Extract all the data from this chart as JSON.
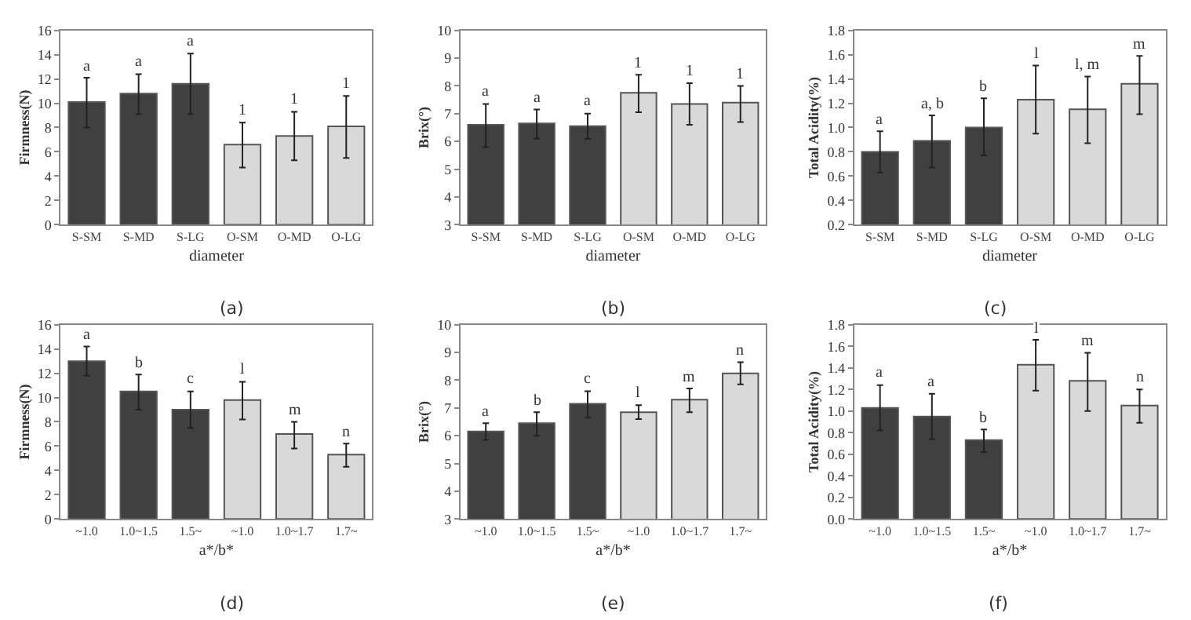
{
  "chart_data": [
    {
      "type": "bar",
      "categories": [
        "S-SM",
        "S-MD",
        "S-LG",
        "O-SM",
        "O-MD",
        "O-LG"
      ],
      "values": [
        10.1,
        10.8,
        11.6,
        6.6,
        7.3,
        8.1
      ],
      "colors": [
        "#404040",
        "#404040",
        "#404040",
        "#d9d9d9",
        "#d9d9d9",
        "#d9d9d9"
      ],
      "errors": [
        [
          8.0,
          12.1
        ],
        [
          9.1,
          12.4
        ],
        [
          9.1,
          14.1
        ],
        [
          4.7,
          8.4
        ],
        [
          5.3,
          9.3
        ],
        [
          5.5,
          10.6
        ]
      ],
      "ylabel": "Firmness(N)",
      "xlabel": "diameter",
      "ylim": [
        0,
        16
      ],
      "yticks": [
        0,
        2,
        4,
        6,
        8,
        10,
        12,
        14,
        16
      ],
      "annotations": [
        "a",
        "a",
        "a",
        "1",
        "1",
        "1",
        "(a)"
      ]
    },
    {
      "type": "bar",
      "categories": [
        "S-SM",
        "S-MD",
        "S-LG",
        "O-SM",
        "O-MD",
        "O-LG"
      ],
      "values": [
        6.6,
        6.65,
        6.55,
        7.75,
        7.35,
        7.4
      ],
      "colors": [
        "#404040",
        "#404040",
        "#404040",
        "#d9d9d9",
        "#d9d9d9",
        "#d9d9d9"
      ],
      "errors": [
        [
          5.8,
          7.35
        ],
        [
          6.1,
          7.15
        ],
        [
          6.1,
          7.0
        ],
        [
          7.05,
          8.4
        ],
        [
          6.6,
          8.1
        ],
        [
          6.7,
          8.0
        ]
      ],
      "ylabel": "Brix(°)",
      "xlabel": "diameter",
      "ylim": [
        3,
        10
      ],
      "yticks": [
        3,
        4,
        5,
        6,
        7,
        8,
        9,
        10
      ],
      "annotations": [
        "a",
        "a",
        "a",
        "1",
        "1",
        "1",
        "(b)"
      ]
    },
    {
      "type": "bar",
      "categories": [
        "S-SM",
        "S-MD",
        "S-LG",
        "O-SM",
        "O-MD",
        "O-LG"
      ],
      "values": [
        0.8,
        0.89,
        1.0,
        1.23,
        1.15,
        1.36
      ],
      "colors": [
        "#404040",
        "#404040",
        "#404040",
        "#d9d9d9",
        "#d9d9d9",
        "#d9d9d9"
      ],
      "errors": [
        [
          0.63,
          0.97
        ],
        [
          0.67,
          1.1
        ],
        [
          0.77,
          1.24
        ],
        [
          0.95,
          1.51
        ],
        [
          0.87,
          1.42
        ],
        [
          1.11,
          1.59
        ]
      ],
      "ylabel": "Total Acidity(%)",
      "xlabel": "diameter",
      "ylim": [
        0.2,
        1.8
      ],
      "yticks": [
        {
          "value": 0.2,
          "label": "0.2"
        },
        {
          "value": 0.4,
          "label": "0.4"
        },
        {
          "value": 0.6,
          "label": "0.6"
        },
        {
          "value": 0.8,
          "label": "0.8"
        },
        {
          "value": 1.0,
          "label": "1.0"
        },
        {
          "value": 1.2,
          "label": "1.2"
        },
        {
          "value": 1.4,
          "label": "1.4"
        },
        {
          "value": 1.6,
          "label": "1.6"
        },
        {
          "value": 1.8,
          "label": "1.8"
        }
      ],
      "annotations": [
        "a",
        "a, b",
        "b",
        "l",
        "l, m",
        "m",
        "(c)"
      ]
    },
    {
      "type": "bar",
      "categories": [
        "~1.0",
        "1.0~1.5",
        "1.5~",
        "~1.0",
        "1.0~1.7",
        "1.7~"
      ],
      "values": [
        13.0,
        10.5,
        9.0,
        9.8,
        7.0,
        5.3
      ],
      "colors": [
        "#404040",
        "#404040",
        "#404040",
        "#d9d9d9",
        "#d9d9d9",
        "#d9d9d9"
      ],
      "errors": [
        [
          11.8,
          14.2
        ],
        [
          9.0,
          11.9
        ],
        [
          7.5,
          10.5
        ],
        [
          8.2,
          11.3
        ],
        [
          5.8,
          8.0
        ],
        [
          4.3,
          6.2
        ]
      ],
      "ylabel": "Firmness(N)",
      "xlabel": "a*/b*",
      "ylim": [
        0,
        16
      ],
      "yticks": [
        0,
        2,
        4,
        6,
        8,
        10,
        12,
        14,
        16
      ],
      "annotations": [
        "a",
        "b",
        "c",
        "l",
        "m",
        "n",
        "(d)"
      ]
    },
    {
      "type": "bar",
      "categories": [
        "~1.0",
        "1.0~1.5",
        "1.5~",
        "~1.0",
        "1.0~1.7",
        "1.7~"
      ],
      "values": [
        6.15,
        6.45,
        7.15,
        6.85,
        7.3,
        8.25
      ],
      "colors": [
        "#404040",
        "#404040",
        "#404040",
        "#d9d9d9",
        "#d9d9d9",
        "#d9d9d9"
      ],
      "errors": [
        [
          5.85,
          6.45
        ],
        [
          6.0,
          6.85
        ],
        [
          6.65,
          7.6
        ],
        [
          6.6,
          7.1
        ],
        [
          6.85,
          7.7
        ],
        [
          7.85,
          8.65
        ]
      ],
      "ylabel": "Brix(°)",
      "xlabel": "a*/b*",
      "ylim": [
        3,
        10
      ],
      "yticks": [
        3,
        4,
        5,
        6,
        7,
        8,
        9,
        10
      ],
      "annotations": [
        "a",
        "b",
        "c",
        "l",
        "m",
        "n",
        "(e)"
      ]
    },
    {
      "type": "bar",
      "categories": [
        "~1.0",
        "1.0~1.5",
        "1.5~",
        "~1.0",
        "1.0~1.7",
        "1.7~"
      ],
      "values": [
        1.03,
        0.95,
        0.73,
        1.43,
        1.28,
        1.05
      ],
      "colors": [
        "#404040",
        "#404040",
        "#404040",
        "#d9d9d9",
        "#d9d9d9",
        "#d9d9d9"
      ],
      "errors": [
        [
          0.82,
          1.24
        ],
        [
          0.74,
          1.16
        ],
        [
          0.62,
          0.83
        ],
        [
          1.19,
          1.66
        ],
        [
          1.0,
          1.54
        ],
        [
          0.89,
          1.2
        ]
      ],
      "ylabel": "Total Acidity(%)",
      "xlabel": "a*/b*",
      "ylim": [
        0,
        1.8
      ],
      "yticks": [
        {
          "value": 0,
          "label": "0.0"
        },
        {
          "value": 0.2,
          "label": "0.2"
        },
        {
          "value": 0.4,
          "label": "0.4"
        },
        {
          "value": 0.6,
          "label": "0.6"
        },
        {
          "value": 0.8,
          "label": "0.8"
        },
        {
          "value": 1.0,
          "label": "1.0"
        },
        {
          "value": 1.2,
          "label": "1.2"
        },
        {
          "value": 1.4,
          "label": "1.4"
        },
        {
          "value": 1.6,
          "label": "1.6"
        },
        {
          "value": 1.8,
          "label": "1.8"
        }
      ],
      "annotations": [
        "a",
        "a",
        "b",
        "l",
        "m",
        "n",
        "(f)"
      ]
    }
  ]
}
